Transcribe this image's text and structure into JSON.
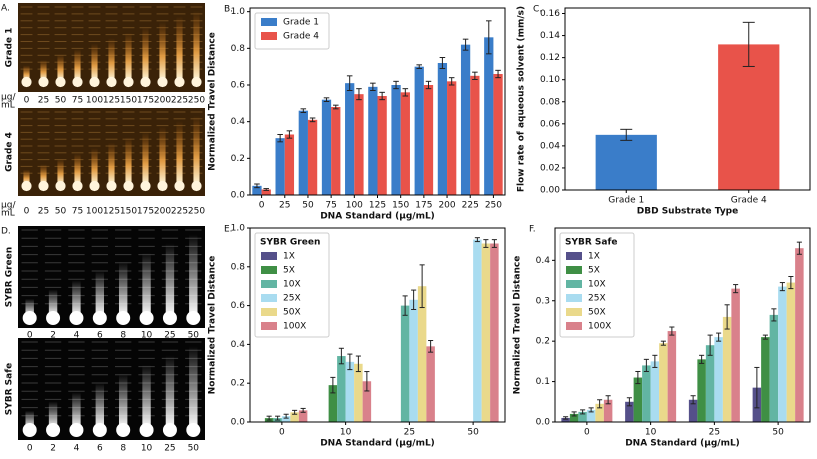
{
  "image_panels": [
    {
      "label": "A.",
      "rows": [
        {
          "name": "Grade 1"
        },
        {
          "name": "Grade 4"
        }
      ],
      "unit": [
        "µg/",
        "mL"
      ],
      "lanes": [
        "0",
        "25",
        "50",
        "75",
        "100",
        "125",
        "150",
        "175",
        "200",
        "225",
        "250"
      ]
    },
    {
      "label": "D.",
      "rows": [
        {
          "name": "SYBR Green"
        },
        {
          "name": "SYBR Safe"
        }
      ],
      "lanes": [
        "0",
        "2",
        "4",
        "6",
        "8",
        "10",
        "25",
        "50"
      ]
    }
  ],
  "chart_data": [
    {
      "type": "bar",
      "panel_label": "B.",
      "xlabel": "DNA Standard (µg/mL)",
      "ylabel": "Normalized Travel Distance",
      "categories": [
        "0",
        "25",
        "50",
        "75",
        "100",
        "125",
        "150",
        "175",
        "200",
        "225",
        "250"
      ],
      "series": [
        {
          "name": "Grade 1",
          "color": "#3a7dc9",
          "values": [
            0.05,
            0.31,
            0.46,
            0.52,
            0.61,
            0.59,
            0.6,
            0.7,
            0.72,
            0.82,
            0.86
          ],
          "errors": [
            0.01,
            0.02,
            0.01,
            0.01,
            0.04,
            0.02,
            0.02,
            0.01,
            0.03,
            0.03,
            0.09
          ]
        },
        {
          "name": "Grade 4",
          "color": "#e8534a",
          "values": [
            0.03,
            0.33,
            0.41,
            0.48,
            0.55,
            0.54,
            0.56,
            0.6,
            0.62,
            0.65,
            0.66
          ],
          "errors": [
            0.005,
            0.02,
            0.01,
            0.01,
            0.03,
            0.02,
            0.02,
            0.02,
            0.02,
            0.02,
            0.02
          ]
        }
      ],
      "ylim": [
        0,
        1.02
      ],
      "yticks": [
        {
          "value": 0,
          "label": "0.0"
        },
        0.2,
        0.4,
        0.6,
        0.8,
        {
          "value": 1,
          "label": "1.0"
        }
      ],
      "legend": "upper left"
    },
    {
      "type": "bar",
      "panel_label": "C.",
      "xlabel": "DBD Substrate Type",
      "ylabel": "Flow rate of aqueous solvent (mm/s)",
      "categories": [
        "Grade 1",
        "Grade 4"
      ],
      "values": [
        0.05,
        0.132
      ],
      "errors": [
        0.005,
        0.02
      ],
      "colors": [
        "#3a7dc9",
        "#e8534a"
      ],
      "ylim": [
        0,
        0.165
      ],
      "yticks": [
        {
          "value": 0,
          "label": "0.00"
        },
        0.02,
        0.04,
        0.06,
        0.08,
        {
          "value": 0.1,
          "label": "0.10"
        },
        0.12,
        0.14,
        0.16
      ]
    },
    {
      "type": "bar",
      "panel_label": "E.",
      "xlabel": "DNA Standard (µg/mL)",
      "ylabel": "Normalized Travel Distance",
      "legend_title": "SYBR Green",
      "categories": [
        "0",
        "10",
        "25",
        "50"
      ],
      "series": [
        {
          "name": "1X",
          "color": "#55508a",
          "values": [
            0,
            0,
            0,
            0
          ],
          "errors": [
            0,
            0,
            0,
            0
          ]
        },
        {
          "name": "5X",
          "color": "#3f8f45",
          "values": [
            0.02,
            0.19,
            0,
            0
          ],
          "errors": [
            0.01,
            0.04,
            0,
            0
          ]
        },
        {
          "name": "10X",
          "color": "#62b5a3",
          "values": [
            0.02,
            0.34,
            0.6,
            0
          ],
          "errors": [
            0.01,
            0.04,
            0.05,
            0
          ]
        },
        {
          "name": "25X",
          "color": "#a9dcf0",
          "values": [
            0.03,
            0.31,
            0.63,
            0.94
          ],
          "errors": [
            0.01,
            0.04,
            0.05,
            0.01
          ]
        },
        {
          "name": "50X",
          "color": "#ead98b",
          "values": [
            0.05,
            0.3,
            0.7,
            0.92
          ],
          "errors": [
            0.01,
            0.04,
            0.11,
            0.02
          ]
        },
        {
          "name": "100X",
          "color": "#d9818b",
          "values": [
            0.06,
            0.21,
            0.39,
            0.92
          ],
          "errors": [
            0.01,
            0.05,
            0.03,
            0.02
          ]
        }
      ],
      "ylim": [
        0,
        1.0
      ],
      "yticks": [
        {
          "value": 0,
          "label": "0.0"
        },
        0.2,
        0.4,
        0.6,
        0.8,
        {
          "value": 1,
          "label": "1.0"
        }
      ],
      "legend": "upper left"
    },
    {
      "type": "bar",
      "panel_label": "F.",
      "xlabel": "DNA Standard (µg/mL)",
      "ylabel": "Normalized Travel Distance",
      "legend_title": "SYBR Safe",
      "categories": [
        "0",
        "10",
        "25",
        "50"
      ],
      "series": [
        {
          "name": "1X",
          "color": "#55508a",
          "values": [
            0.01,
            0.05,
            0.055,
            0.085
          ],
          "errors": [
            0.003,
            0.01,
            0.01,
            0.05
          ]
        },
        {
          "name": "5X",
          "color": "#3f8f45",
          "values": [
            0.02,
            0.11,
            0.155,
            0.21
          ],
          "errors": [
            0.005,
            0.015,
            0.01,
            0.005
          ]
        },
        {
          "name": "10X",
          "color": "#62b5a3",
          "values": [
            0.025,
            0.14,
            0.19,
            0.265
          ],
          "errors": [
            0.005,
            0.015,
            0.025,
            0.015
          ]
        },
        {
          "name": "25X",
          "color": "#a9dcf0",
          "values": [
            0.03,
            0.15,
            0.21,
            0.335
          ],
          "errors": [
            0.005,
            0.015,
            0.01,
            0.01
          ]
        },
        {
          "name": "50X",
          "color": "#ead98b",
          "values": [
            0.045,
            0.195,
            0.26,
            0.345
          ],
          "errors": [
            0.01,
            0.005,
            0.03,
            0.015
          ]
        },
        {
          "name": "100X",
          "color": "#d9818b",
          "values": [
            0.055,
            0.225,
            0.33,
            0.43
          ],
          "errors": [
            0.01,
            0.01,
            0.01,
            0.015
          ]
        }
      ],
      "ylim": [
        0,
        0.48
      ],
      "yticks": [
        {
          "value": 0,
          "label": "0.0"
        },
        0.1,
        0.2,
        0.3,
        0.4
      ],
      "legend": "upper left"
    }
  ]
}
